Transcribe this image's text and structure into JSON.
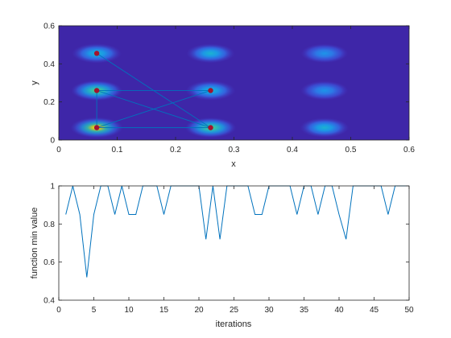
{
  "chart_data": [
    {
      "type": "heatmap",
      "xlabel": "x",
      "ylabel": "y",
      "xlim": [
        0,
        0.6
      ],
      "ylim": [
        0,
        0.6
      ],
      "xticks": [
        "0",
        "0.1",
        "0.2",
        "0.3",
        "0.4",
        "0.5",
        "0.6"
      ],
      "yticks": [
        "0",
        "0.2",
        "0.4",
        "0.6"
      ],
      "grid": false,
      "colormap": "parula",
      "background_color": "#3e26a8",
      "blob_centers_x": [
        0.065,
        0.26,
        0.455
      ],
      "blob_centers_y": [
        0.065,
        0.26,
        0.455
      ],
      "blob_intensity": [
        [
          1.0,
          0.82,
          0.62
        ],
        [
          0.85,
          0.68,
          0.5
        ],
        [
          0.68,
          0.56,
          0.45
        ]
      ],
      "path_color": "#0072bd",
      "point_color": "#a2142f",
      "path": [
        {
          "x": 0.065,
          "y": 0.455
        },
        {
          "x": 0.26,
          "y": 0.065
        },
        {
          "x": 0.065,
          "y": 0.26
        },
        {
          "x": 0.26,
          "y": 0.26
        },
        {
          "x": 0.065,
          "y": 0.065
        },
        {
          "x": 0.065,
          "y": 0.26
        },
        {
          "x": 0.26,
          "y": 0.065
        },
        {
          "x": 0.065,
          "y": 0.065
        }
      ]
    },
    {
      "type": "line",
      "xlabel": "iterations",
      "ylabel": "function min value",
      "xlim": [
        0,
        50
      ],
      "ylim": [
        0.4,
        1
      ],
      "xticks": [
        "0",
        "5",
        "10",
        "15",
        "20",
        "25",
        "30",
        "35",
        "40",
        "45",
        "50"
      ],
      "yticks": [
        "0.4",
        "0.6",
        "0.8",
        "1"
      ],
      "grid": false,
      "line_color": "#0072bd",
      "x": [
        1,
        2,
        3,
        4,
        5,
        6,
        7,
        8,
        9,
        10,
        11,
        12,
        13,
        14,
        15,
        16,
        17,
        18,
        19,
        20,
        21,
        22,
        23,
        24,
        25,
        26,
        27,
        28,
        29,
        30,
        31,
        32,
        33,
        34,
        35,
        36,
        37,
        38,
        39,
        40,
        41,
        42,
        43,
        44,
        45,
        46,
        47,
        48,
        49,
        50
      ],
      "y": [
        0.85,
        1,
        0.85,
        0.52,
        0.85,
        1,
        1,
        0.85,
        1,
        0.85,
        0.85,
        1,
        1,
        1,
        0.85,
        1,
        1,
        1,
        1,
        1,
        0.72,
        1,
        0.72,
        1,
        1,
        1,
        1,
        0.85,
        0.85,
        1,
        1,
        1,
        1,
        0.85,
        1,
        1,
        0.85,
        1,
        1,
        0.85,
        0.72,
        1,
        1,
        1,
        1,
        1,
        0.85,
        1,
        1,
        1
      ]
    }
  ]
}
